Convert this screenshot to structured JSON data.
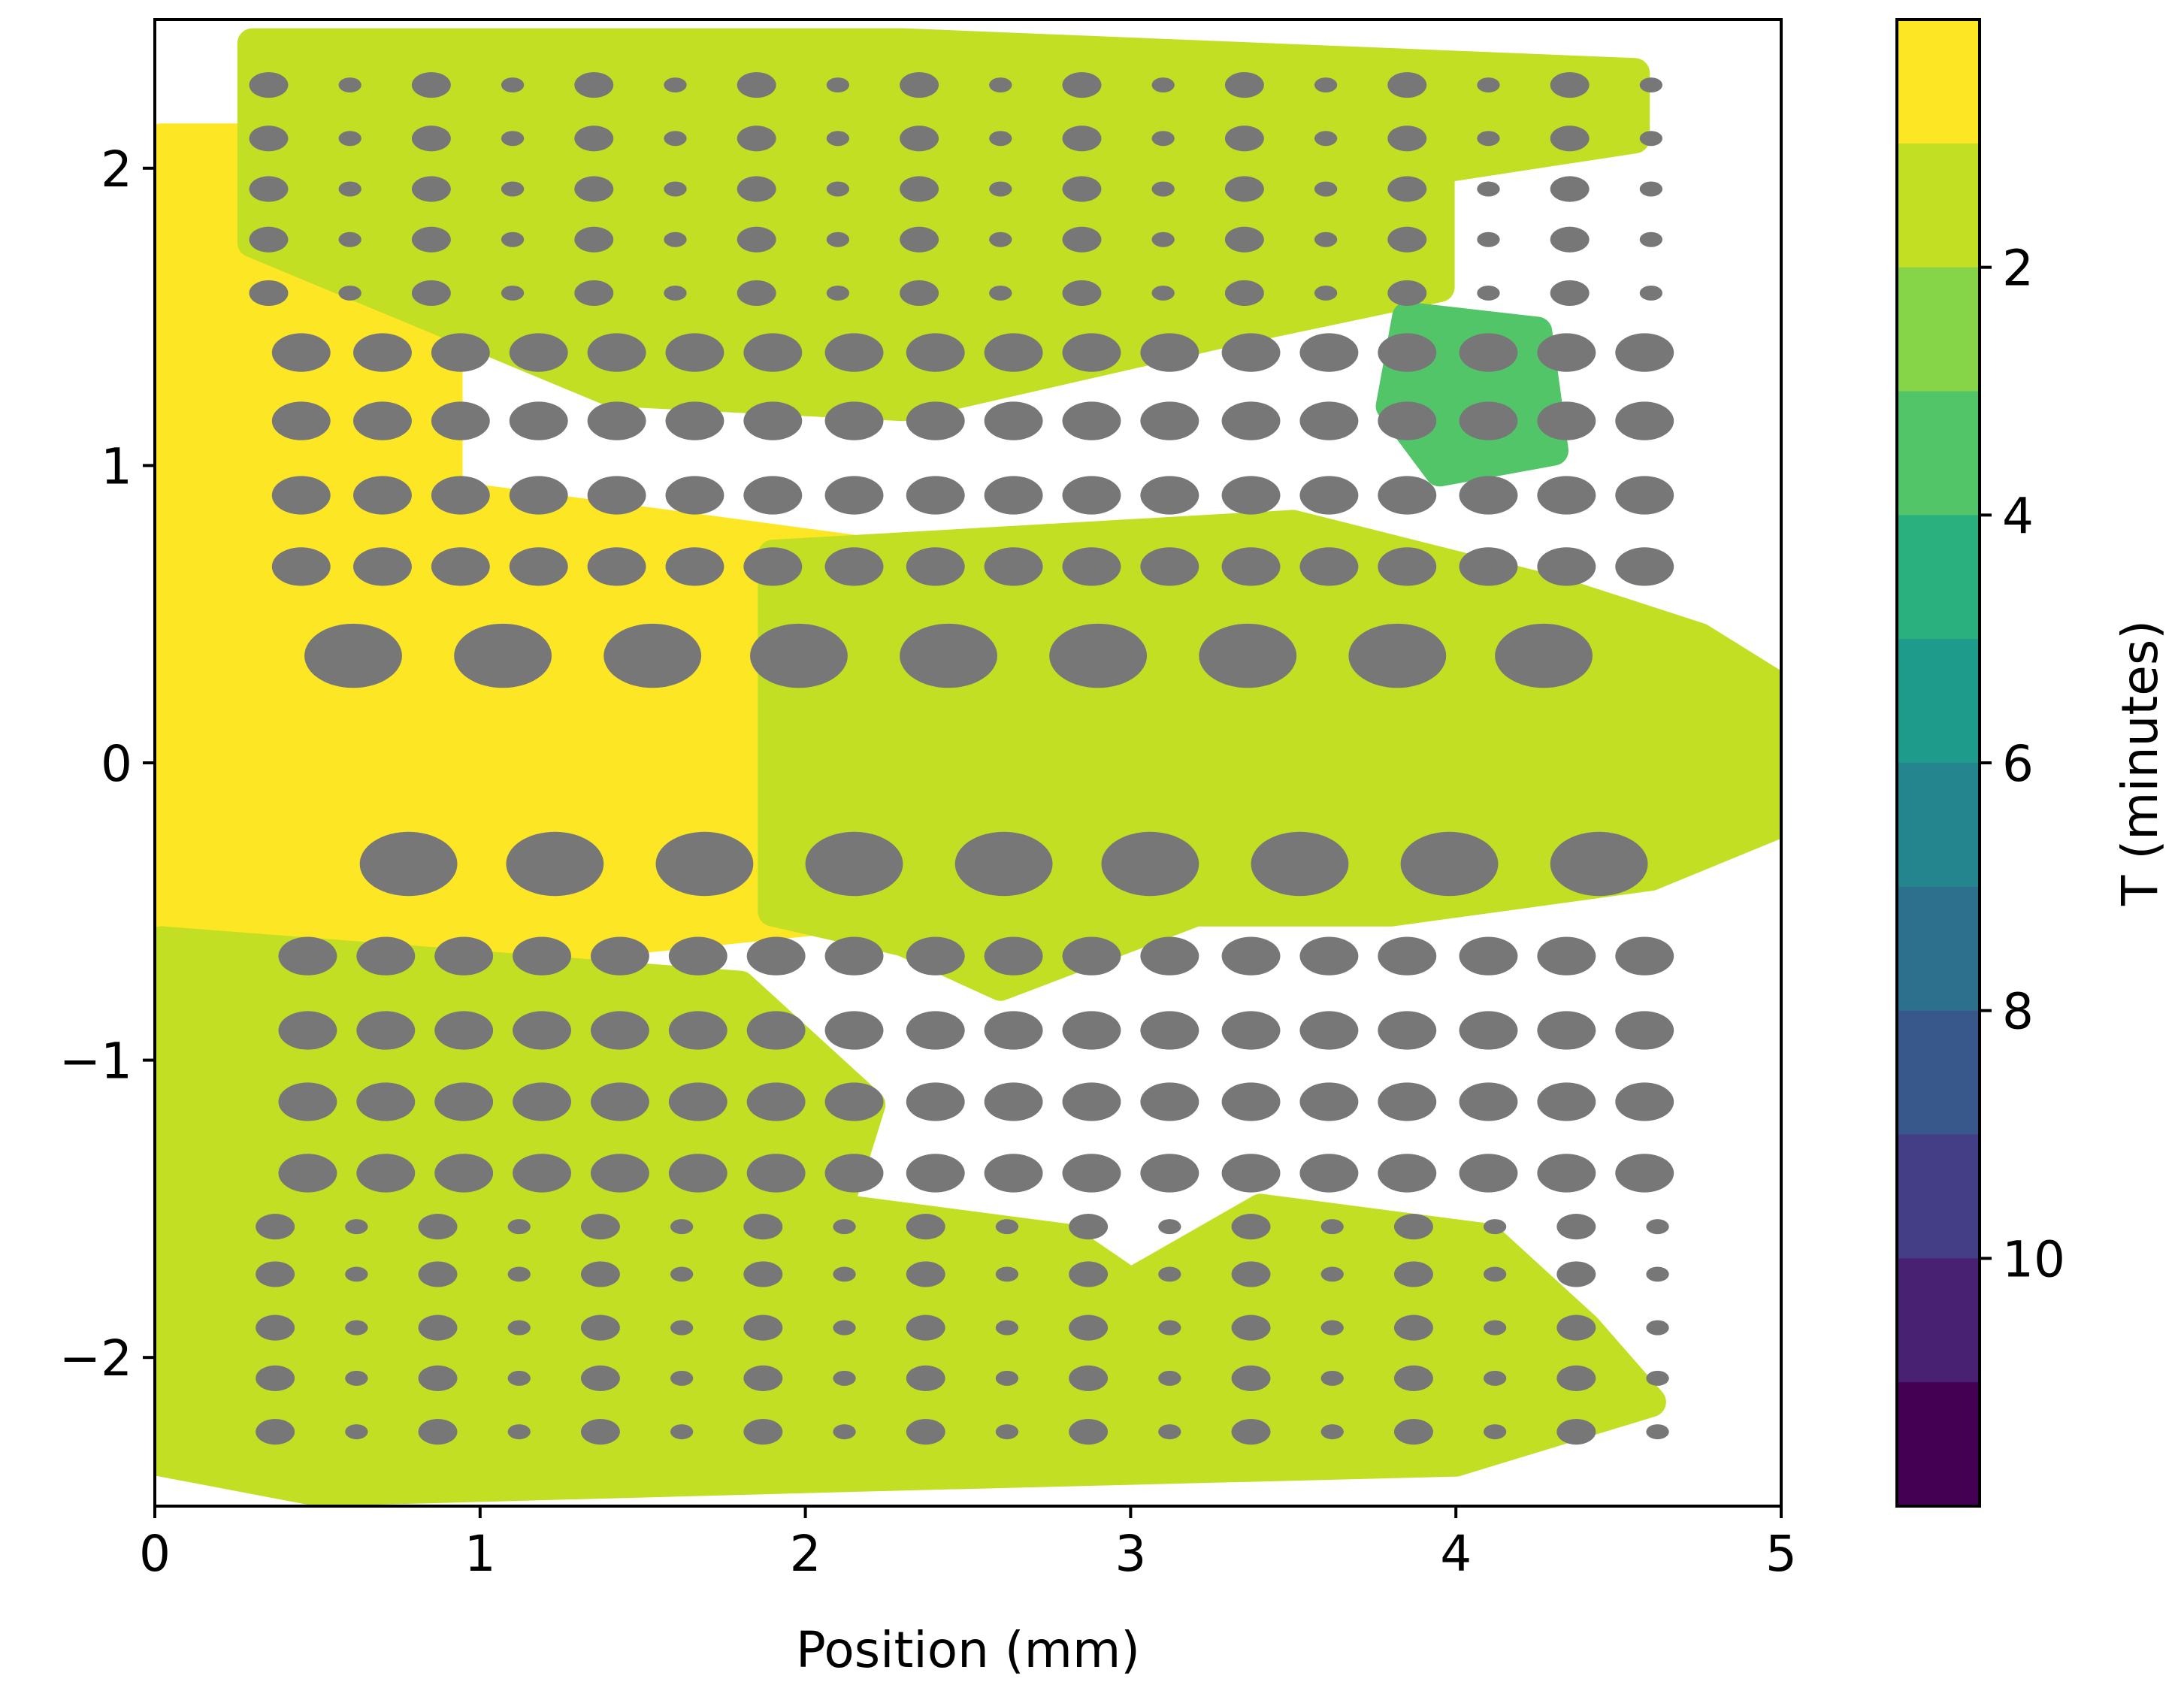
{
  "chart_data": {
    "type": "heatmap",
    "title": "",
    "xlabel": "Position (mm)",
    "ylabel": "",
    "xlim": [
      0,
      5
    ],
    "ylim": [
      -2.5,
      2.5
    ],
    "xticks": [
      0,
      1,
      2,
      3,
      4,
      5
    ],
    "xtick_labels": [
      "0",
      "1",
      "2",
      "3",
      "4",
      "5"
    ],
    "yticks": [
      -2,
      -1,
      0,
      1,
      2
    ],
    "ytick_labels": [
      "−2",
      "−1",
      "0",
      "1",
      "2"
    ],
    "colorbar": {
      "label": "T (minutes)",
      "range": [
        0,
        12
      ],
      "ticks": [
        2,
        4,
        6,
        8,
        10
      ],
      "tick_labels": [
        "2",
        "4",
        "6",
        "8",
        "10"
      ],
      "levels": [
        "#fde725",
        "#c2df23",
        "#86d549",
        "#52c569",
        "#2ab07f",
        "#1e9b8a",
        "#25858e",
        "#2d708e",
        "#38588c",
        "#433e85",
        "#482173",
        "#440154"
      ]
    },
    "fill_regions": [
      {
        "name": "left-yellow",
        "t": 0.5,
        "points": [
          [
            0.02,
            2.1
          ],
          [
            0.45,
            2.1
          ],
          [
            0.9,
            1.6
          ],
          [
            0.9,
            0.9
          ],
          [
            2.6,
            0.65
          ],
          [
            2.75,
            0.2
          ],
          [
            2.75,
            -0.45
          ],
          [
            1.4,
            -0.6
          ],
          [
            0.55,
            -1.1
          ],
          [
            0.55,
            -2.2
          ],
          [
            0.02,
            -2.2
          ]
        ]
      },
      {
        "name": "upper-green",
        "t": 1.5,
        "points": [
          [
            0.3,
            2.42
          ],
          [
            2.3,
            2.42
          ],
          [
            4.55,
            2.32
          ],
          [
            4.55,
            2.1
          ],
          [
            3.95,
            2.0
          ],
          [
            3.95,
            1.6
          ],
          [
            3.3,
            1.45
          ],
          [
            2.3,
            1.2
          ],
          [
            1.4,
            1.25
          ],
          [
            0.3,
            1.75
          ]
        ]
      },
      {
        "name": "middle-band",
        "t": 1.5,
        "points": [
          [
            1.9,
            0.7
          ],
          [
            3.5,
            0.8
          ],
          [
            4.3,
            0.58
          ],
          [
            4.75,
            0.42
          ],
          [
            5.0,
            0.25
          ],
          [
            5.0,
            -0.2
          ],
          [
            4.6,
            -0.38
          ],
          [
            3.8,
            -0.5
          ],
          [
            3.2,
            -0.5
          ],
          [
            2.6,
            -0.75
          ],
          [
            2.3,
            -0.6
          ],
          [
            1.9,
            -0.5
          ]
        ]
      },
      {
        "name": "lower-green",
        "t": 1.5,
        "points": [
          [
            0.02,
            -0.6
          ],
          [
            1.8,
            -0.75
          ],
          [
            2.2,
            -1.15
          ],
          [
            2.1,
            -1.5
          ],
          [
            2.8,
            -1.6
          ],
          [
            3.0,
            -1.75
          ],
          [
            3.4,
            -1.5
          ],
          [
            4.1,
            -1.6
          ],
          [
            4.4,
            -1.9
          ],
          [
            4.6,
            -2.15
          ],
          [
            4.0,
            -2.35
          ],
          [
            2.2,
            -2.4
          ],
          [
            0.5,
            -2.45
          ],
          [
            0.02,
            -2.35
          ]
        ]
      },
      {
        "name": "right-green-patch",
        "t": 3.0,
        "points": [
          [
            3.85,
            1.5
          ],
          [
            4.25,
            1.45
          ],
          [
            4.3,
            1.05
          ],
          [
            3.95,
            0.98
          ],
          [
            3.8,
            1.2
          ]
        ]
      }
    ],
    "dot_rows": [
      {
        "y": 2.28,
        "xs": [
          0.35,
          0.6,
          0.85,
          1.1,
          1.35,
          1.6,
          1.85,
          2.1,
          2.35,
          2.6,
          2.85,
          3.1,
          3.35,
          3.6,
          3.85,
          4.1,
          4.35,
          4.6
        ],
        "r": 0.06,
        "alt_r": 0.035
      },
      {
        "y": 2.1,
        "xs": [
          0.35,
          0.6,
          0.85,
          1.1,
          1.35,
          1.6,
          1.85,
          2.1,
          2.35,
          2.6,
          2.85,
          3.1,
          3.35,
          3.6,
          3.85,
          4.1,
          4.35,
          4.6
        ],
        "r": 0.06,
        "alt_r": 0.035
      },
      {
        "y": 1.93,
        "xs": [
          0.35,
          0.6,
          0.85,
          1.1,
          1.35,
          1.6,
          1.85,
          2.1,
          2.35,
          2.6,
          2.85,
          3.1,
          3.35,
          3.6,
          3.85,
          4.1,
          4.35,
          4.6
        ],
        "r": 0.06,
        "alt_r": 0.035
      },
      {
        "y": 1.76,
        "xs": [
          0.35,
          0.6,
          0.85,
          1.1,
          1.35,
          1.6,
          1.85,
          2.1,
          2.35,
          2.6,
          2.85,
          3.1,
          3.35,
          3.6,
          3.85,
          4.1,
          4.35,
          4.6
        ],
        "r": 0.06,
        "alt_r": 0.035
      },
      {
        "y": 1.58,
        "xs": [
          0.35,
          0.6,
          0.85,
          1.1,
          1.35,
          1.6,
          1.85,
          2.1,
          2.35,
          2.6,
          2.85,
          3.1,
          3.35,
          3.6,
          3.85,
          4.1,
          4.35,
          4.6
        ],
        "r": 0.06,
        "alt_r": 0.035
      },
      {
        "y": 1.38,
        "xs": [
          0.45,
          0.7,
          0.94,
          1.18,
          1.42,
          1.66,
          1.9,
          2.15,
          2.4,
          2.64,
          2.88,
          3.12,
          3.37,
          3.61,
          3.85,
          4.1,
          4.34,
          4.58
        ],
        "r": 0.09,
        "alt_r": 0.09
      },
      {
        "y": 1.15,
        "xs": [
          0.45,
          0.7,
          0.94,
          1.18,
          1.42,
          1.66,
          1.9,
          2.15,
          2.4,
          2.64,
          2.88,
          3.12,
          3.37,
          3.61,
          3.85,
          4.1,
          4.34,
          4.58
        ],
        "r": 0.09,
        "alt_r": 0.09
      },
      {
        "y": 0.9,
        "xs": [
          0.45,
          0.7,
          0.94,
          1.18,
          1.42,
          1.66,
          1.9,
          2.15,
          2.4,
          2.64,
          2.88,
          3.12,
          3.37,
          3.61,
          3.85,
          4.1,
          4.34,
          4.58
        ],
        "r": 0.09,
        "alt_r": 0.09
      },
      {
        "y": 0.66,
        "xs": [
          0.45,
          0.7,
          0.94,
          1.18,
          1.42,
          1.66,
          1.9,
          2.15,
          2.4,
          2.64,
          2.88,
          3.12,
          3.37,
          3.61,
          3.85,
          4.1,
          4.34,
          4.58
        ],
        "r": 0.09,
        "alt_r": 0.09
      },
      {
        "y": 0.36,
        "xs": [
          0.61,
          1.07,
          1.53,
          1.98,
          2.44,
          2.9,
          3.36,
          3.82,
          4.27
        ],
        "r": 0.15,
        "alt_r": 0.15
      },
      {
        "y": -0.34,
        "xs": [
          0.78,
          1.23,
          1.69,
          2.15,
          2.61,
          3.06,
          3.52,
          3.98,
          4.44
        ],
        "r": 0.15,
        "alt_r": 0.15
      },
      {
        "y": -0.65,
        "xs": [
          0.47,
          0.71,
          0.95,
          1.19,
          1.43,
          1.67,
          1.91,
          2.15,
          2.4,
          2.64,
          2.88,
          3.12,
          3.37,
          3.61,
          3.85,
          4.1,
          4.34,
          4.58
        ],
        "r": 0.09,
        "alt_r": 0.09
      },
      {
        "y": -0.9,
        "xs": [
          0.47,
          0.71,
          0.95,
          1.19,
          1.43,
          1.67,
          1.91,
          2.15,
          2.4,
          2.64,
          2.88,
          3.12,
          3.37,
          3.61,
          3.85,
          4.1,
          4.34,
          4.58
        ],
        "r": 0.09,
        "alt_r": 0.09
      },
      {
        "y": -1.14,
        "xs": [
          0.47,
          0.71,
          0.95,
          1.19,
          1.43,
          1.67,
          1.91,
          2.15,
          2.4,
          2.64,
          2.88,
          3.12,
          3.37,
          3.61,
          3.85,
          4.1,
          4.34,
          4.58
        ],
        "r": 0.09,
        "alt_r": 0.09
      },
      {
        "y": -1.38,
        "xs": [
          0.47,
          0.71,
          0.95,
          1.19,
          1.43,
          1.67,
          1.91,
          2.15,
          2.4,
          2.64,
          2.88,
          3.12,
          3.37,
          3.61,
          3.85,
          4.1,
          4.34,
          4.58
        ],
        "r": 0.09,
        "alt_r": 0.09
      },
      {
        "y": -1.56,
        "xs": [
          0.37,
          0.62,
          0.87,
          1.12,
          1.37,
          1.62,
          1.87,
          2.12,
          2.37,
          2.62,
          2.87,
          3.12,
          3.37,
          3.62,
          3.87,
          4.12,
          4.37,
          4.62
        ],
        "r": 0.06,
        "alt_r": 0.035
      },
      {
        "y": -1.72,
        "xs": [
          0.37,
          0.62,
          0.87,
          1.12,
          1.37,
          1.62,
          1.87,
          2.12,
          2.37,
          2.62,
          2.87,
          3.12,
          3.37,
          3.62,
          3.87,
          4.12,
          4.37,
          4.62
        ],
        "r": 0.06,
        "alt_r": 0.035
      },
      {
        "y": -1.9,
        "xs": [
          0.37,
          0.62,
          0.87,
          1.12,
          1.37,
          1.62,
          1.87,
          2.12,
          2.37,
          2.62,
          2.87,
          3.12,
          3.37,
          3.62,
          3.87,
          4.12,
          4.37,
          4.62
        ],
        "r": 0.06,
        "alt_r": 0.035
      },
      {
        "y": -2.07,
        "xs": [
          0.37,
          0.62,
          0.87,
          1.12,
          1.37,
          1.62,
          1.87,
          2.12,
          2.37,
          2.62,
          2.87,
          3.12,
          3.37,
          3.62,
          3.87,
          4.12,
          4.37,
          4.62
        ],
        "r": 0.06,
        "alt_r": 0.035
      },
      {
        "y": -2.25,
        "xs": [
          0.37,
          0.62,
          0.87,
          1.12,
          1.37,
          1.62,
          1.87,
          2.12,
          2.37,
          2.62,
          2.87,
          3.12,
          3.37,
          3.62,
          3.87,
          4.12,
          4.37,
          4.62
        ],
        "r": 0.06,
        "alt_r": 0.035
      }
    ],
    "dot_color": "#777777"
  }
}
